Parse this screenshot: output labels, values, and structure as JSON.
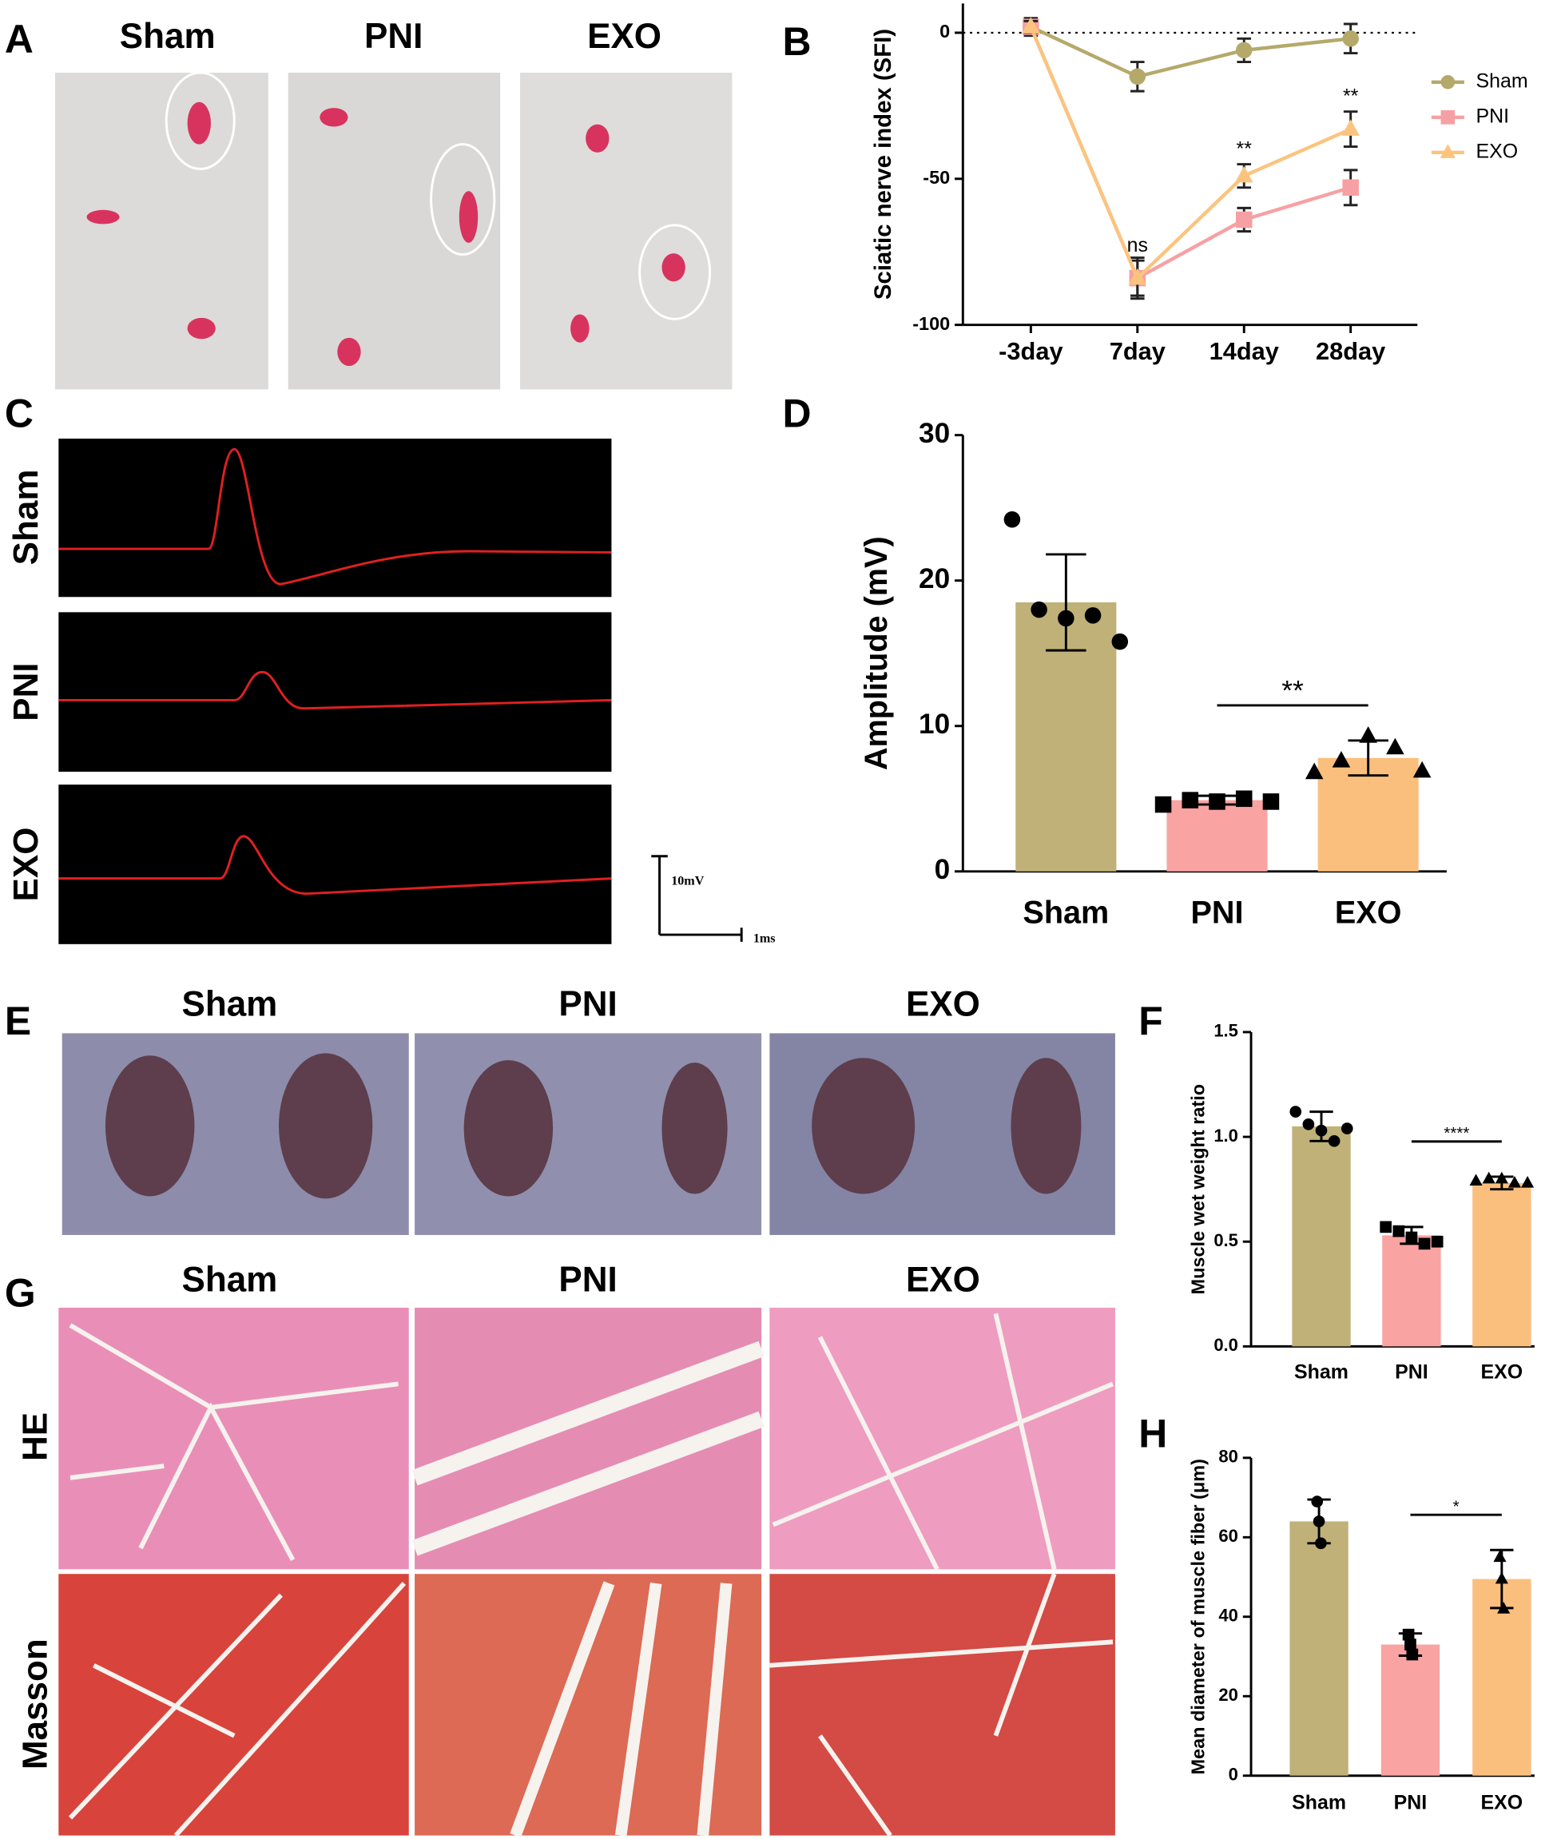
{
  "figure": {
    "panel_labels": [
      "A",
      "B",
      "C",
      "D",
      "E",
      "F",
      "G",
      "H"
    ],
    "a_groups": [
      "Sham",
      "PNI",
      "EXO"
    ],
    "c_rows": [
      "Sham",
      "PNI",
      "EXO"
    ],
    "c_scale": [
      "10mV",
      "1ms"
    ],
    "e_groups": [
      "Sham",
      "PNI",
      "EXO"
    ],
    "g_groups": [
      "Sham",
      "PNI",
      "EXO"
    ],
    "g_rows": [
      "HE",
      "Masson"
    ]
  },
  "chart_data": [
    {
      "type": "line",
      "y_label": "Sciatic nerve index (SFI)",
      "categories": [
        "-3day",
        "7day",
        "14day",
        "28day"
      ],
      "series": [
        {
          "name": "Sham",
          "color": "#b5a96a",
          "values": [
            2,
            -15,
            -6,
            -2
          ],
          "errors": [
            3,
            5,
            4,
            5
          ]
        },
        {
          "name": "PNI",
          "color": "#f7a0a3",
          "values": [
            2,
            -84,
            -64,
            -53
          ],
          "errors": [
            2,
            7,
            4,
            6
          ]
        },
        {
          "name": "EXO",
          "color": "#fbc47e",
          "values": [
            2,
            -84,
            -49,
            -33
          ],
          "errors": [
            2,
            6,
            4,
            6
          ]
        }
      ],
      "ylim": [
        -100,
        10
      ],
      "yticks": [
        -100,
        -50,
        0
      ],
      "reference_line": 0,
      "legend": "right",
      "annotations": [
        {
          "text": "ns",
          "x": "7day",
          "series": "EXO"
        },
        {
          "text": "**",
          "x": "14day",
          "series": "EXO"
        },
        {
          "text": "**",
          "x": "28day",
          "series": "EXO"
        }
      ]
    },
    {
      "type": "bar",
      "y_label": "Amplitude (mV)",
      "categories": [
        "Sham",
        "PNI",
        "EXO"
      ],
      "values": [
        18.5,
        4.9,
        7.8
      ],
      "errors": [
        3.3,
        0.3,
        1.2
      ],
      "colors": [
        "#bfb178",
        "#f9a3a3",
        "#fbbf7d"
      ],
      "points": [
        [
          24.2,
          18.0,
          17.4,
          17.6,
          15.8
        ],
        [
          4.6,
          4.9,
          4.8,
          5.0,
          4.8
        ],
        [
          6.8,
          7.6,
          9.3,
          8.5,
          6.9
        ]
      ],
      "ylim": [
        0,
        30
      ],
      "yticks": [
        0,
        10,
        20,
        30
      ],
      "significance": [
        {
          "text": "**",
          "from": "PNI",
          "to": "EXO"
        }
      ]
    },
    {
      "type": "bar",
      "y_label": "Muscle wet weight ratio",
      "categories": [
        "Sham",
        "PNI",
        "EXO"
      ],
      "values": [
        1.05,
        0.53,
        0.78
      ],
      "errors": [
        0.07,
        0.04,
        0.03
      ],
      "colors": [
        "#bfb178",
        "#f9a3a3",
        "#fbbf7d"
      ],
      "points": [
        [
          1.12,
          1.06,
          1.03,
          0.98,
          1.04
        ],
        [
          0.57,
          0.55,
          0.52,
          0.49,
          0.5
        ],
        [
          0.79,
          0.8,
          0.8,
          0.78,
          0.78
        ]
      ],
      "ylim": [
        0,
        1.5
      ],
      "yticks": [
        {
          "value": 0,
          "label": "0.0"
        },
        {
          "value": 0.5,
          "label": "0.5"
        },
        {
          "value": 1,
          "label": "1.0"
        },
        {
          "value": 1.5,
          "label": "1.5"
        }
      ],
      "significance": [
        {
          "text": "****",
          "from": "PNI",
          "to": "EXO"
        }
      ]
    },
    {
      "type": "bar",
      "y_label": "Mean diameter of muscle fiber (μm)",
      "categories": [
        "Sham",
        "PNI",
        "EXO"
      ],
      "values": [
        64,
        33,
        49.5
      ],
      "errors": [
        5.5,
        2.8,
        7.3
      ],
      "colors": [
        "#bfb178",
        "#f9a3a3",
        "#fbbf7d"
      ],
      "points": [
        [
          69,
          64,
          58.5
        ],
        [
          35.5,
          33,
          30.5
        ],
        [
          55,
          49.5,
          42
        ]
      ],
      "ylim": [
        0,
        80
      ],
      "yticks": [
        0,
        20,
        40,
        60,
        80
      ],
      "significance": [
        {
          "text": "*",
          "from": "PNI",
          "to": "EXO"
        }
      ]
    }
  ]
}
